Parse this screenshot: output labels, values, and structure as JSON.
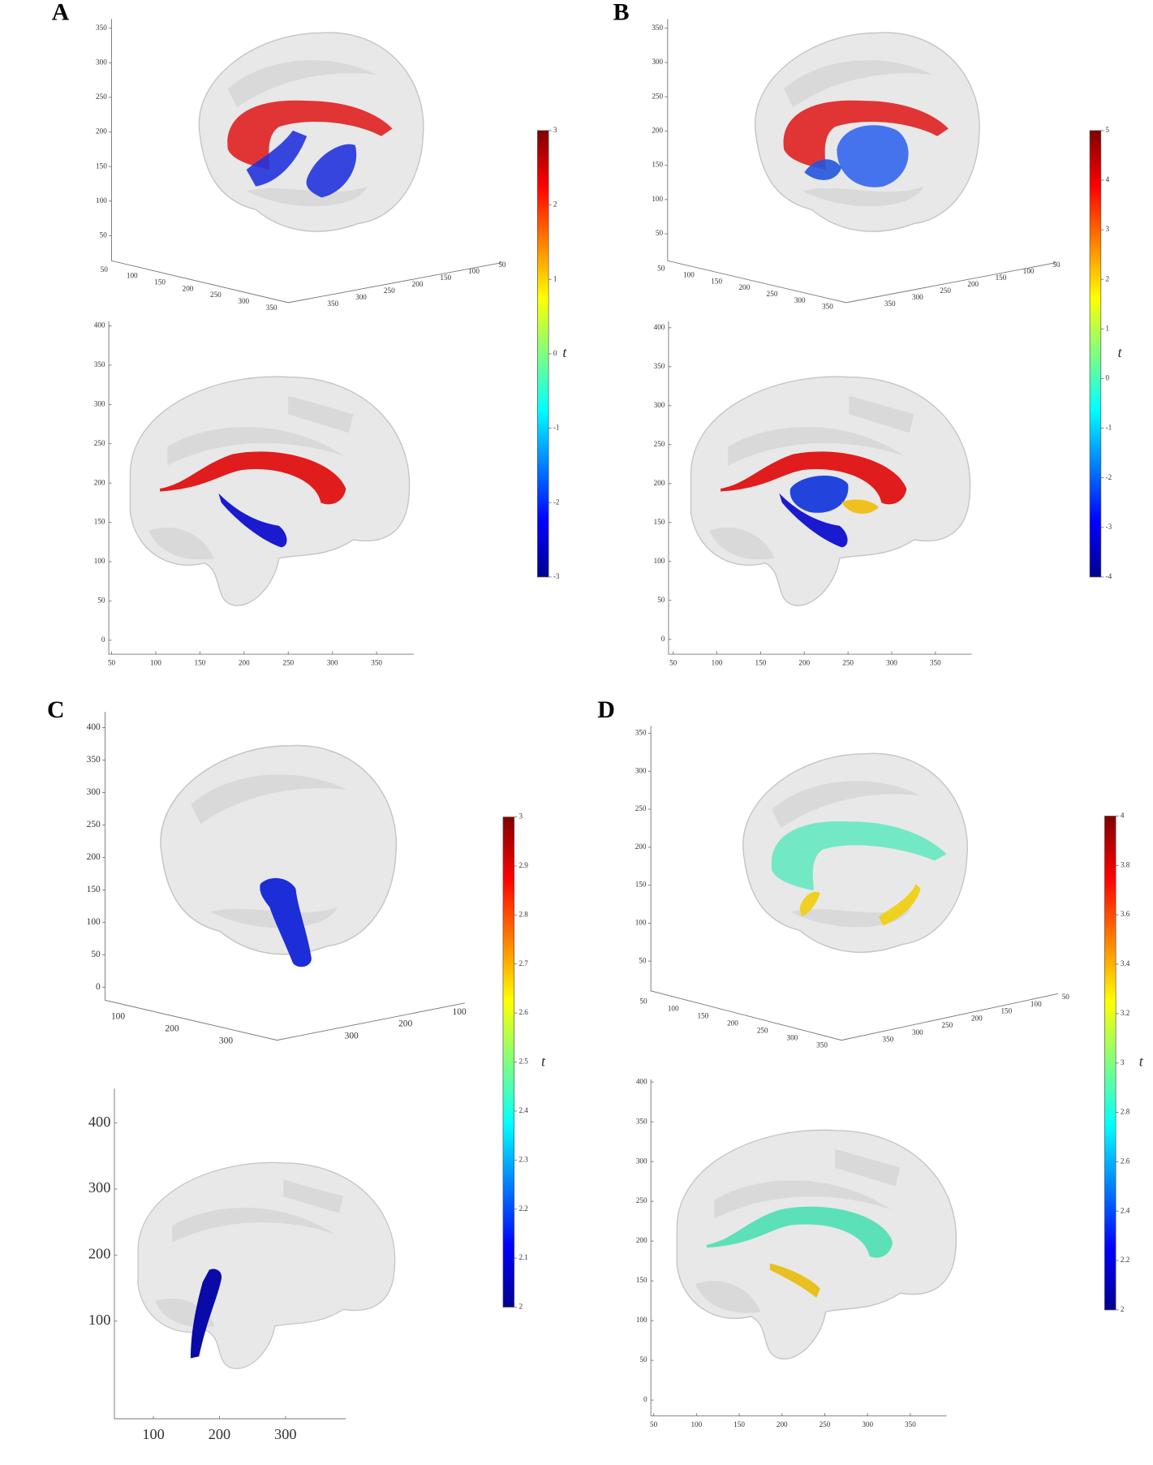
{
  "panels": [
    {
      "label": "A",
      "view3d": {
        "z_ticks": [
          350,
          300,
          250,
          200,
          150,
          100,
          50
        ],
        "x_ticks": [
          50,
          100,
          150,
          200,
          250,
          300,
          350
        ],
        "y_ticks": [
          350,
          300,
          250,
          200,
          150,
          100,
          50
        ]
      },
      "sagittal": {
        "y_ticks": [
          400,
          350,
          300,
          250,
          200,
          150,
          100,
          50,
          0
        ],
        "x_ticks": [
          50,
          100,
          150,
          200,
          250,
          300,
          350
        ]
      },
      "colorbar": {
        "label": "t",
        "ticks": [
          3,
          2,
          1,
          0,
          -1,
          -2,
          -3
        ]
      }
    },
    {
      "label": "B",
      "view3d": {
        "z_ticks": [
          350,
          300,
          250,
          200,
          150,
          100,
          50
        ],
        "x_ticks": [
          50,
          100,
          150,
          200,
          250,
          300,
          350
        ],
        "y_ticks": [
          350,
          300,
          250,
          200,
          150,
          100,
          50
        ]
      },
      "sagittal": {
        "y_ticks": [
          400,
          350,
          300,
          250,
          200,
          150,
          100,
          50,
          0
        ],
        "x_ticks": [
          50,
          100,
          150,
          200,
          250,
          300,
          350
        ]
      },
      "colorbar": {
        "label": "t",
        "ticks": [
          5,
          4,
          3,
          2,
          1,
          0,
          -1,
          -2,
          -3,
          -4
        ]
      }
    },
    {
      "label": "C",
      "view3d": {
        "z_ticks": [
          400,
          350,
          300,
          250,
          200,
          150,
          100,
          50,
          0
        ],
        "x_ticks": [
          100,
          200,
          300
        ],
        "y_ticks": [
          300,
          200,
          100
        ]
      },
      "sagittal": {
        "y_ticks": [
          400,
          300,
          200,
          100
        ],
        "x_ticks": [
          100,
          200,
          300
        ]
      },
      "colorbar": {
        "label": "t",
        "ticks": [
          3,
          2.9,
          2.8,
          2.7,
          2.6,
          2.5,
          2.4,
          2.3,
          2.2,
          2.1,
          2
        ]
      }
    },
    {
      "label": "D",
      "view3d": {
        "z_ticks": [
          350,
          300,
          250,
          200,
          150,
          100,
          50
        ],
        "x_ticks": [
          50,
          100,
          150,
          200,
          250,
          300,
          350
        ],
        "y_ticks": [
          350,
          300,
          250,
          200,
          150,
          100,
          50
        ]
      },
      "sagittal": {
        "y_ticks": [
          400,
          350,
          300,
          250,
          200,
          150,
          100,
          50,
          0
        ],
        "x_ticks": [
          50,
          100,
          150,
          200,
          250,
          300,
          350
        ]
      },
      "colorbar": {
        "label": "t",
        "ticks": [
          4,
          3.8,
          3.6,
          3.4,
          3.2,
          3,
          2.8,
          2.6,
          2.4,
          2.2,
          2
        ]
      }
    }
  ]
}
